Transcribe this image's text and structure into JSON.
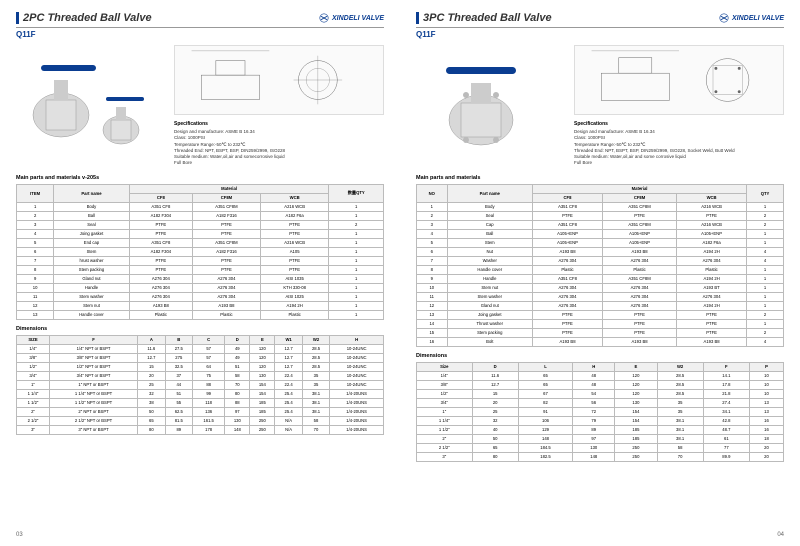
{
  "brand": "XINDELI VALVE",
  "brand_color": "#0a3d91",
  "left": {
    "title": "2PC Threaded Ball Valve",
    "model": "Q11F",
    "page_num": "03",
    "specs_title": "Specifications",
    "specs": [
      "Design and manufacture: ASME B 16.34",
      "Class: 1000PSI",
      "Temperature Range:-50℃ to 232℃",
      "Threaded End: NPT, BSPT, BSP, DIN259/2999, ISO228",
      "Suitable medium: Water,oil,air and somecorrosive liquid",
      "Full Bore"
    ],
    "parts_title": "Main parts and materials v-205s",
    "parts_headers": [
      "ITEM",
      "Part name",
      "CF8",
      "CF8M",
      "WCB",
      "数量QTY"
    ],
    "parts_subheader": "Material",
    "parts_rows": [
      [
        "1",
        "Body",
        "A351 CF8",
        "A351 CF8M",
        "A216 WCB",
        "1"
      ],
      [
        "2",
        "Ball",
        "A182 F304",
        "A182 F316",
        "A182 F6a",
        "1"
      ],
      [
        "3",
        "Seal",
        "PTFE",
        "PTFE",
        "PTFE",
        "2"
      ],
      [
        "4",
        "Joing gasket",
        "PTFE",
        "PTFE",
        "PTFE",
        "1"
      ],
      [
        "5",
        "End cap",
        "A351 CF8",
        "A351 CF8M",
        "A216 WCB",
        "1"
      ],
      [
        "6",
        "Stem",
        "A182 F304",
        "A182 F316",
        "A105",
        "1"
      ],
      [
        "7",
        "hrust washer",
        "PTFE",
        "PTFE",
        "PTFE",
        "1"
      ],
      [
        "8",
        "Stem packing",
        "PTFE",
        "PTFE",
        "PTFE",
        "1"
      ],
      [
        "9",
        "Gland nut",
        "A276 304",
        "A276 304",
        "AISI 1035",
        "1"
      ],
      [
        "10",
        "Handle",
        "A276 304",
        "A276 304",
        "KTH 330-08",
        "1"
      ],
      [
        "11",
        "Stem washer",
        "A276 304",
        "A276 304",
        "AISI 1025",
        "1"
      ],
      [
        "12",
        "Stem nut",
        "A193 B8",
        "A193 B8",
        "A194 2H",
        "1"
      ],
      [
        "13",
        "Handle cover",
        "Plastic",
        "Plastic",
        "Plastic",
        "1"
      ]
    ],
    "dim_title": "Dimensions",
    "dim_headers": [
      "SIZE",
      "F",
      "A",
      "B",
      "C",
      "D",
      "E",
      "W1",
      "W2",
      "H"
    ],
    "dim_rows": [
      [
        "1/4\"",
        "1/4\" NPT or BSPT",
        "11.6",
        "27.5",
        "57",
        "49",
        "120",
        "12.7",
        "28.5",
        "10-24UNC"
      ],
      [
        "3/8\"",
        "3/8\" NPT or BSPT",
        "12.7",
        "275",
        "57",
        "49",
        "120",
        "12.7",
        "28.5",
        "10-24UNC"
      ],
      [
        "1/2\"",
        "1/2\" NPT or BSPT",
        "15",
        "32.5",
        "64",
        "51",
        "120",
        "12.7",
        "28.5",
        "10-24UNC"
      ],
      [
        "3/4\"",
        "3/4\" NPT or BSPT",
        "20",
        "37",
        "75",
        "58",
        "130",
        "22.4",
        "35",
        "10-24UNC"
      ],
      [
        "1\"",
        "1\" NPT or BSPT",
        "25",
        "44",
        "88",
        "70",
        "154",
        "22.4",
        "35",
        "10-24UNC"
      ],
      [
        "1 1/4\"",
        "1 1/4\" NPT or BSPT",
        "32",
        "51",
        "99",
        "80",
        "154",
        "25.4",
        "38.1",
        "1/4-20UNS"
      ],
      [
        "1 1/2\"",
        "1 1/2\" NPT or BSPT",
        "38",
        "55",
        "118",
        "88",
        "185",
        "25.4",
        "38.1",
        "1/4-20UNS"
      ],
      [
        "2\"",
        "2\" NPT or BSPT",
        "50",
        "62.5",
        "136",
        "97",
        "185",
        "25.4",
        "38.1",
        "1/4-20UNS"
      ],
      [
        "2 1/2\"",
        "2 1/2\" NPT or BSPT",
        "65",
        "81.5",
        "161.5",
        "130",
        "250",
        "N/A",
        "58",
        "1/4-20UNS"
      ],
      [
        "3\"",
        "3\" NPT or BSPT",
        "80",
        "89",
        "178",
        "148",
        "250",
        "N/A",
        "70",
        "1/4-20UNS"
      ]
    ]
  },
  "right": {
    "title": "3PC Threaded Ball Valve",
    "model": "Q11F",
    "page_num": "04",
    "specs_title": "Specifications",
    "specs": [
      "Design and manufacture: ASME B 16.34",
      "Class: 1000PSI",
      "Temperature Range:-50℃ to 232℃",
      "Threaded End: NPT, BSPT, BSP, DIN259/2999, ISO228, Socket Weld, Butt Weld",
      "Suitable medium: Water,oil,air and some corrosive liquid",
      "Full Bore"
    ],
    "parts_title": "Main parts and materials",
    "parts_headers": [
      "NO",
      "Part name",
      "CF8",
      "CF8M",
      "WCB",
      "QTY"
    ],
    "parts_subheader": "Material",
    "parts_rows": [
      [
        "1",
        "Body",
        "A351 CF8",
        "A351 CF8M",
        "A216 WCB",
        "1"
      ],
      [
        "2",
        "Seal",
        "PTFE",
        "PTFE",
        "PTFE",
        "2"
      ],
      [
        "3",
        "Cap",
        "A351 CF8",
        "A351 CF8M",
        "A216 WCB",
        "2"
      ],
      [
        "4",
        "Ball",
        "A105+ENP",
        "A105+ENP",
        "A105+ENP",
        "1"
      ],
      [
        "5",
        "Stem",
        "A105+ENP",
        "A105+ENP",
        "A182 F6a",
        "1"
      ],
      [
        "6",
        "Nut",
        "A193 B8",
        "A193 B8",
        "A194 2H",
        "4"
      ],
      [
        "7",
        "Washer",
        "A276 304",
        "A276 304",
        "A276 304",
        "4"
      ],
      [
        "8",
        "Handle cover",
        "Plastic",
        "Plastic",
        "Plastic",
        "1"
      ],
      [
        "9",
        "Handle",
        "A351 CF8",
        "A351 CF8M",
        "A194 2H",
        "1"
      ],
      [
        "10",
        "Stem nut",
        "A276 304",
        "A276 304",
        "A193 BT",
        "1"
      ],
      [
        "11",
        "Stem washer",
        "A276 304",
        "A276 304",
        "A276 304",
        "1"
      ],
      [
        "12",
        "Gland nut",
        "A276 304",
        "A276 304",
        "A194 2H",
        "1"
      ],
      [
        "13",
        "Joing gasket",
        "PTFE",
        "PTFE",
        "PTFE",
        "2"
      ],
      [
        "14",
        "Thrust washer",
        "PTFE",
        "PTFE",
        "PTFE",
        "1"
      ],
      [
        "15",
        "Stem packing",
        "PTFE",
        "PTFE",
        "PTFE",
        "2"
      ],
      [
        "16",
        "Bolt",
        "A193 B8",
        "A193 B8",
        "A193 B8",
        "4"
      ]
    ],
    "dim_title": "Dimensions",
    "dim_headers": [
      "Size",
      "D",
      "L",
      "H",
      "E",
      "W2",
      "F",
      "P"
    ],
    "dim_rows": [
      [
        "1/4\"",
        "11.6",
        "65",
        "48",
        "120",
        "28.5",
        "14.1",
        "10"
      ],
      [
        "3/8\"",
        "12.7",
        "65",
        "48",
        "120",
        "28.5",
        "17.8",
        "10"
      ],
      [
        "1/2\"",
        "15",
        "67",
        "54",
        "120",
        "28.5",
        "21.8",
        "10"
      ],
      [
        "3/4\"",
        "20",
        "82",
        "56",
        "130",
        "35",
        "27.4",
        "13"
      ],
      [
        "1\"",
        "25",
        "91",
        "72",
        "154",
        "35",
        "34.1",
        "13"
      ],
      [
        "1 1/4\"",
        "32",
        "106",
        "79",
        "154",
        "38.1",
        "42.8",
        "16"
      ],
      [
        "1 1/2\"",
        "40",
        "129",
        "89",
        "185",
        "38.1",
        "48.7",
        "16"
      ],
      [
        "2\"",
        "50",
        "148",
        "97",
        "185",
        "38.1",
        "61",
        "18"
      ],
      [
        "2 1/2\"",
        "65",
        "184.5",
        "130",
        "250",
        "58",
        "77",
        "20"
      ],
      [
        "3\"",
        "80",
        "182.5",
        "148",
        "250",
        "70",
        "89.9",
        "20"
      ]
    ]
  }
}
